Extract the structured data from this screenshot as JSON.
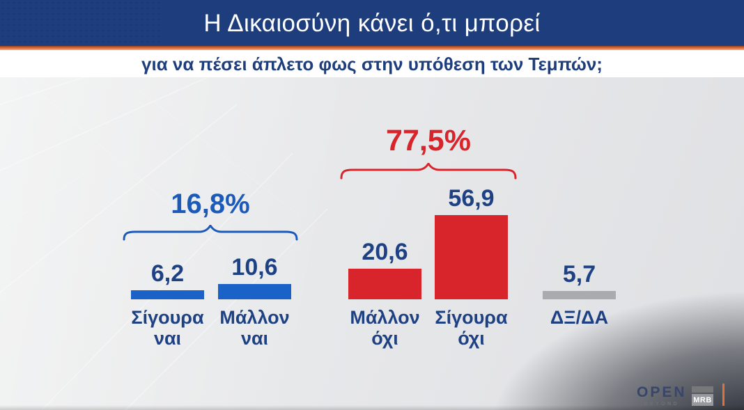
{
  "header": {
    "title": "Η Δικαιοσύνη κάνει ό,τι μπορεί",
    "subtitle": "για να πέσει άπλετο φως στην υπόθεση των Τεμπών;"
  },
  "chart_data": {
    "type": "bar",
    "title": "Η Δικαιοσύνη κάνει ό,τι μπορεί",
    "subtitle": "για να πέσει άπλετο φως στην υπόθεση των Τεμπών;",
    "unit": "%",
    "categories": [
      "Σίγουρα ναι",
      "Μάλλον ναι",
      "Μάλλον όχι",
      "Σίγουρα όχι",
      "ΔΞ/ΔΑ"
    ],
    "values": [
      6.2,
      10.6,
      20.6,
      56.9,
      5.7
    ],
    "value_labels": [
      "6,2",
      "10,6",
      "20,6",
      "56,9",
      "5,7"
    ],
    "bar_colors": [
      "#1b62c8",
      "#1b62c8",
      "#d8242b",
      "#d8242b",
      "#a9abae"
    ],
    "groups": [
      {
        "label": "16,8%",
        "value": 16.8,
        "members": [
          "Σίγουρα ναι",
          "Μάλλον ναι"
        ],
        "color": "#1c5ab9"
      },
      {
        "label": "77,5%",
        "value": 77.5,
        "members": [
          "Μάλλον όχι",
          "Σίγουρα όχι"
        ],
        "color": "#d8242b"
      }
    ],
    "grid": false,
    "axes_visible": false,
    "legend": "none",
    "ylim": [
      0,
      60
    ]
  },
  "footer": {
    "channel_logo": "OPEN",
    "channel_tagline": "BEYOND",
    "pollster_logo": "MRB"
  },
  "colors": {
    "banner_blue": "#1e3d7c",
    "accent_orange": "#df703a",
    "bar_blue": "#1b62c8",
    "bar_red": "#d8242b",
    "bar_gray": "#a9abae",
    "label_navy": "#1d4183",
    "group_yes_blue": "#1c5ab9",
    "group_no_red": "#d8242b"
  }
}
